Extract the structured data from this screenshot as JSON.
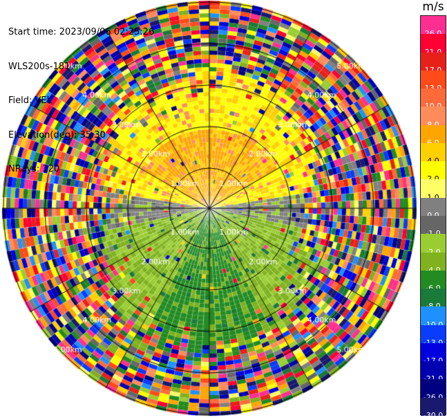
{
  "header": {
    "start_time": "Start time: 2023/09/06 02:25:26",
    "instrument": "WLS200s-181",
    "field": "Field: VEL",
    "elevation": "Elevation(deg): 35.30",
    "nrays": "NRays: 120"
  },
  "range_rings": {
    "labels": [
      "1.00km",
      "2.00km",
      "3.00km",
      "4.00km",
      "5.00km"
    ]
  },
  "colorbar": {
    "unit": "m/s",
    "levels": [
      {
        "label": "26.0",
        "color": "#ff2f92"
      },
      {
        "label": "21.0",
        "color": "#ff0033"
      },
      {
        "label": "17.0",
        "color": "#e8201a"
      },
      {
        "label": "13.0",
        "color": "#ff4a1a"
      },
      {
        "label": "10.0",
        "color": "#ff6a3a"
      },
      {
        "label": "8.0",
        "color": "#ff8c5a"
      },
      {
        "label": "6.0",
        "color": "#ffa500"
      },
      {
        "label": "4.0",
        "color": "#ffd000"
      },
      {
        "label": "2.0",
        "color": "#ffff00"
      },
      {
        "label": "1.0",
        "color": "#ffff66"
      },
      {
        "label": "0.0",
        "color": "#808080"
      },
      {
        "label": "-1.0",
        "color": "#666666"
      },
      {
        "label": "-2.0",
        "color": "#9acd32"
      },
      {
        "label": "-4.0",
        "color": "#7fb21e"
      },
      {
        "label": "-6.0",
        "color": "#228b22"
      },
      {
        "label": "-8.0",
        "color": "#1a7a3a"
      },
      {
        "label": "-10.0",
        "color": "#1e90ff"
      },
      {
        "label": "-13.0",
        "color": "#0a3cff"
      },
      {
        "label": "-17.0",
        "color": "#0000e0"
      },
      {
        "label": "-21.0",
        "color": "#0000b0"
      },
      {
        "label": "-26.0",
        "color": "#000080"
      },
      {
        "label": "-30.0",
        "color": "#191970"
      }
    ]
  }
}
